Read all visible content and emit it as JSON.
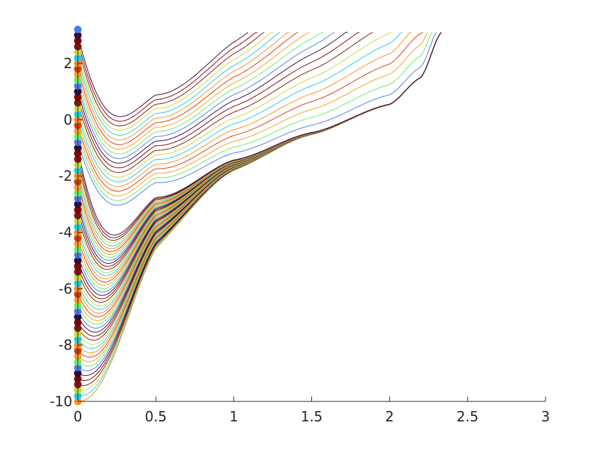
{
  "chart_data": {
    "type": "line",
    "title": "",
    "xlabel": "",
    "ylabel": "",
    "xlim": [
      0,
      3
    ],
    "ylim": [
      -10,
      3.1
    ],
    "grid": false,
    "legend": "none",
    "x_tick_labels": [
      "0",
      "0.5",
      "1",
      "1.5",
      "2",
      "2.5",
      "3"
    ],
    "x_tick_values": [
      0,
      0.5,
      1,
      1.5,
      2,
      2.5,
      3
    ],
    "y_tick_labels": [
      "-10",
      "-8",
      "-6",
      "-4",
      "-2",
      "0",
      "2"
    ],
    "y_tick_values": [
      -10,
      -8,
      -6,
      -4,
      -2,
      0,
      2
    ],
    "description_of_series": "Family of solution curves y(t) with initial values y(0) from -10 to 3.1; each curve starts at x=0 (marked with a dot) and is drawn until y exceeds 3.1 near x≈2.33. Curves from negative starts rise steeply and converge toward a common trajectory (≈-1 at x=1.2, ≈0 at x=1.8) before blowing up.",
    "initial_values": {
      "start": -10,
      "end": 3.1,
      "step": 0.2
    },
    "x_end": 2.33,
    "attractor_points": [
      {
        "x": 0.5,
        "y": -3.2
      },
      {
        "x": 1.0,
        "y": -1.45
      },
      {
        "x": 1.5,
        "y": -0.45
      },
      {
        "x": 2.0,
        "y": 0.55
      },
      {
        "x": 2.2,
        "y": 1.5
      },
      {
        "x": 2.33,
        "y": 3.1
      }
    ],
    "series_colors": [
      "#ff8c1a",
      "#19cfe0",
      "#c8d83c",
      "#7a1a0a",
      "#8a0000",
      "#2d0a3c",
      "#4a7cf0",
      "#62f062",
      "#f0a020",
      "#d43c10"
    ]
  }
}
